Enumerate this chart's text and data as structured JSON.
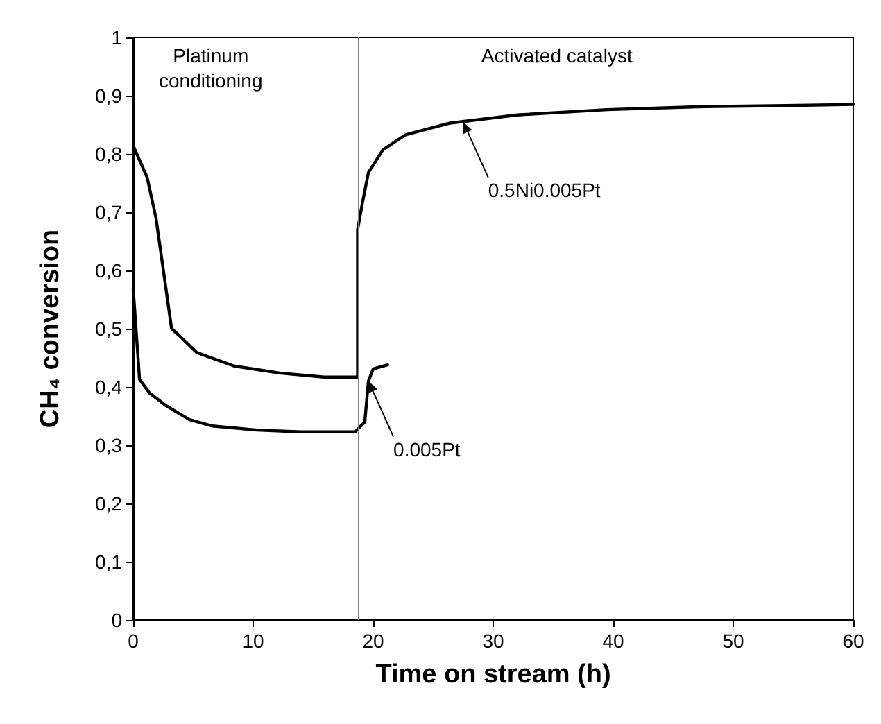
{
  "chart_data": {
    "type": "line",
    "xlabel": "Time on stream (h)",
    "ylabel": "CH₄ conversion",
    "xlim": [
      0,
      60
    ],
    "xticks": [
      0,
      10,
      20,
      30,
      40,
      50,
      60
    ],
    "ylim": [
      0,
      1
    ],
    "yticks": [
      0,
      {
        "value": 0.1,
        "label": "0,1"
      },
      {
        "value": 0.2,
        "label": "0,2"
      },
      {
        "value": 0.3,
        "label": "0,3"
      },
      {
        "value": 0.4,
        "label": "0,4"
      },
      {
        "value": 0.5,
        "label": "0,5"
      },
      {
        "value": 0.6,
        "label": "0,6"
      },
      {
        "value": 0.7,
        "label": "0,7"
      },
      {
        "value": 0.8,
        "label": "0,8"
      },
      {
        "value": 0.9,
        "label": "0,9"
      },
      1
    ],
    "grid": false,
    "marker": "none",
    "line_style": "solid",
    "series": [
      {
        "color": "#000000",
        "x": [
          0,
          1.16,
          1.9,
          3.2,
          3.8,
          5.3,
          8.4,
          12.2,
          15.9,
          18.6,
          18.7,
          18.7,
          19.1,
          19.6,
          20.8,
          22.7,
          26.4,
          32,
          39.5,
          47,
          54.4,
          60
        ],
        "values": [
          0.814,
          0.76,
          0.69,
          0.5,
          0.489,
          0.459,
          0.436,
          0.424,
          0.417,
          0.417,
          0.417,
          0.67,
          0.716,
          0.768,
          0.807,
          0.833,
          0.853,
          0.867,
          0.876,
          0.881,
          0.883,
          0.885
        ]
      },
      {
        "color": "#000000",
        "x": [
          0,
          0.53,
          1.35,
          2.8,
          4.7,
          6.6,
          10.3,
          14,
          18.5,
          19.3,
          19.6,
          20,
          21.2
        ],
        "values": [
          0.569,
          0.413,
          0.39,
          0.367,
          0.344,
          0.333,
          0.326,
          0.323,
          0.323,
          0.34,
          0.41,
          0.431,
          0.438
        ]
      }
    ],
    "ref_lines": [
      {
        "axis": "x",
        "value": 18.7,
        "color": "#808080"
      }
    ],
    "annotations": [
      "Platinum\nconditioning",
      "Activated catalyst",
      {
        "text": "0.5Ni0.005Pt",
        "x": 27.5,
        "y": 0.855
      },
      {
        "text": "0.005Pt",
        "x": 19.6,
        "y": 0.41
      }
    ]
  }
}
